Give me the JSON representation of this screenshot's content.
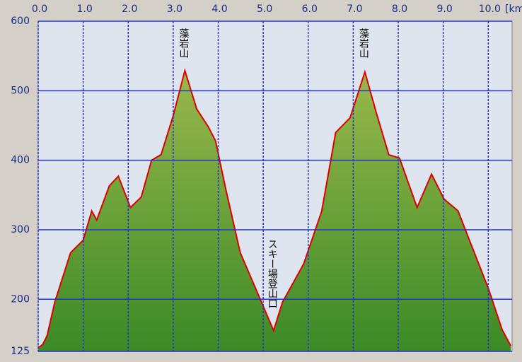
{
  "chart_data": {
    "type": "area",
    "xlabel": "[km]",
    "x": [
      0.0,
      0.1,
      0.2,
      0.37,
      0.72,
      1.0,
      1.19,
      1.3,
      1.58,
      1.78,
      2.05,
      2.29,
      2.52,
      2.73,
      3.0,
      3.26,
      3.52,
      3.78,
      3.94,
      4.17,
      4.49,
      4.96,
      5.23,
      5.43,
      5.9,
      6.3,
      6.61,
      6.93,
      7.26,
      7.51,
      7.79,
      8.03,
      8.42,
      8.74,
      9.02,
      9.33,
      9.6,
      10.0,
      10.31,
      10.5
    ],
    "values": [
      130,
      135,
      148,
      196,
      267,
      285,
      327,
      314,
      363,
      377,
      332,
      347,
      400,
      408,
      464,
      529,
      474,
      448,
      428,
      358,
      267,
      196,
      155,
      196,
      251,
      327,
      440,
      461,
      527,
      469,
      408,
      403,
      332,
      380,
      344,
      327,
      282,
      216,
      156,
      133
    ],
    "line_color": "#e00000",
    "fill_top": "#9ab84c",
    "fill_bottom": "#3b8a26",
    "grid_color": "#2233cc",
    "grid": true,
    "xlim": [
      0,
      10.53
    ],
    "ylim": [
      125,
      600
    ],
    "xticks": [
      {
        "value": 0,
        "label": "0.0"
      },
      {
        "value": 1,
        "label": "1.0"
      },
      {
        "value": 2,
        "label": "2.0"
      },
      {
        "value": 3,
        "label": "3.0"
      },
      {
        "value": 4,
        "label": "4.0"
      },
      {
        "value": 5,
        "label": "5.0"
      },
      {
        "value": 6,
        "label": "6.0"
      },
      {
        "value": 7,
        "label": "7.0"
      },
      {
        "value": 8,
        "label": "8.0"
      },
      {
        "value": 9,
        "label": "9.0"
      },
      {
        "value": 10,
        "label": "10.0"
      }
    ],
    "yticks": [
      125,
      200,
      300,
      400,
      500,
      600
    ],
    "annotations": [
      {
        "text": "藻岩山",
        "x": 3.26
      },
      {
        "text": "藻岩山",
        "x": 7.26
      },
      {
        "text": "スキー場登山口",
        "x": 5.23
      }
    ]
  }
}
